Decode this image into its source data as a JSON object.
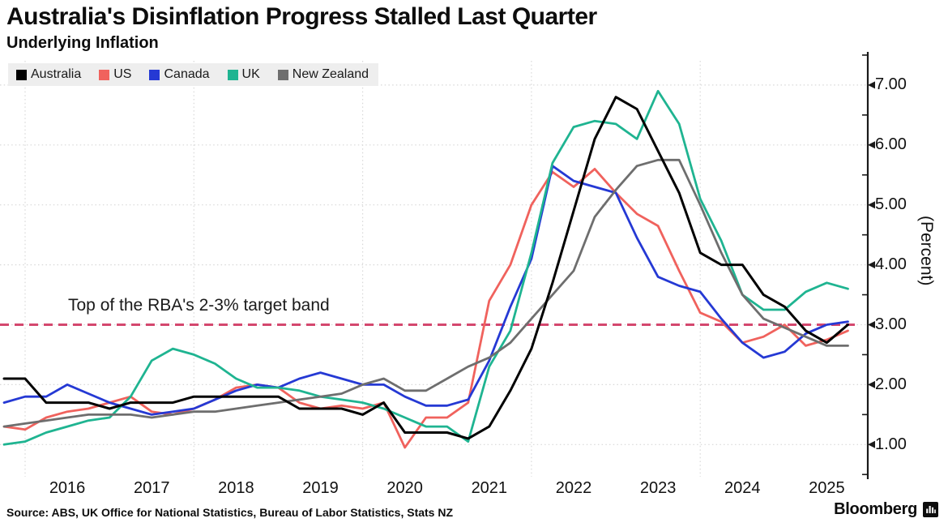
{
  "header": {
    "title": "Australia's Disinflation Progress Stalled Last Quarter",
    "subtitle": "Underlying Inflation"
  },
  "legend": {
    "items": [
      {
        "label": "Australia",
        "color": "#000000"
      },
      {
        "label": "US",
        "color": "#f0625d"
      },
      {
        "label": "Canada",
        "color": "#2539d4"
      },
      {
        "label": "UK",
        "color": "#1fb491"
      },
      {
        "label": "New Zealand",
        "color": "#6e6e6e"
      }
    ]
  },
  "annotation": {
    "text": "Top of the RBA's 2-3% target band"
  },
  "y_axis": {
    "unit_label": "(Percent)",
    "tick_labels": [
      "7.00",
      "6.00",
      "5.00",
      "4.00",
      "3.00",
      "2.00",
      "1.00"
    ],
    "tick_values": [
      7,
      6,
      5,
      4,
      3,
      2,
      1
    ],
    "minor_tick_values": [
      7.5,
      6.5,
      5.5,
      4.5,
      3.5,
      2.5,
      1.5,
      0.5
    ]
  },
  "x_axis": {
    "year_labels": [
      "2016",
      "2017",
      "2018",
      "2019",
      "2020",
      "2021",
      "2022",
      "2023",
      "2024",
      "2025"
    ],
    "gridline_years": [
      2016,
      2018,
      2020,
      2022,
      2024
    ]
  },
  "footer": {
    "source": "Source: ABS, UK Office for National Statistics, Bureau of Labor Statistics, Stats NZ",
    "brand": "Bloomberg"
  },
  "colors": {
    "grid": "#d8d8d8",
    "axis": "#1a1a1a",
    "target_line": "#d4476e",
    "legend_bg": "#eeeeee"
  },
  "chart_data": {
    "type": "line",
    "x_unit": "decimal_year_quarter_end",
    "x": [
      2015.75,
      2016.0,
      2016.25,
      2016.5,
      2016.75,
      2017.0,
      2017.25,
      2017.5,
      2017.75,
      2018.0,
      2018.25,
      2018.5,
      2018.75,
      2019.0,
      2019.25,
      2019.5,
      2019.75,
      2020.0,
      2020.25,
      2020.5,
      2020.75,
      2021.0,
      2021.25,
      2021.5,
      2021.75,
      2022.0,
      2022.25,
      2022.5,
      2022.75,
      2023.0,
      2023.25,
      2023.5,
      2023.75,
      2024.0,
      2024.25,
      2024.5,
      2024.75,
      2025.0,
      2025.25,
      2025.5,
      2025.75
    ],
    "series": [
      {
        "name": "Australia",
        "color": "#000000",
        "width": 3,
        "values": [
          2.1,
          2.1,
          1.7,
          1.7,
          1.7,
          1.6,
          1.7,
          1.7,
          1.7,
          1.8,
          1.8,
          1.8,
          1.8,
          1.8,
          1.6,
          1.6,
          1.6,
          1.5,
          1.7,
          1.2,
          1.2,
          1.2,
          1.1,
          1.3,
          1.9,
          2.6,
          3.7,
          4.9,
          6.1,
          6.8,
          6.6,
          5.9,
          5.2,
          4.2,
          4.0,
          4.0,
          3.5,
          3.3,
          2.9,
          2.7,
          3.0
        ]
      },
      {
        "name": "US",
        "color": "#f0625d",
        "width": 2.8,
        "values": [
          1.3,
          1.25,
          1.45,
          1.55,
          1.6,
          1.7,
          1.8,
          1.55,
          1.5,
          1.6,
          1.75,
          1.95,
          2.0,
          1.95,
          1.7,
          1.6,
          1.65,
          1.6,
          1.7,
          0.95,
          1.45,
          1.45,
          1.7,
          3.4,
          4.0,
          5.0,
          5.55,
          5.3,
          5.6,
          5.2,
          4.85,
          4.65,
          3.9,
          3.2,
          3.05,
          2.7,
          2.8,
          3.0,
          2.65,
          2.75,
          2.9
        ]
      },
      {
        "name": "Canada",
        "color": "#2539d4",
        "width": 2.8,
        "values": [
          1.7,
          1.8,
          1.8,
          2.0,
          1.85,
          1.7,
          1.6,
          1.5,
          1.55,
          1.6,
          1.75,
          1.9,
          2.0,
          1.95,
          2.1,
          2.2,
          2.1,
          2.0,
          2.0,
          1.8,
          1.65,
          1.65,
          1.75,
          2.4,
          3.3,
          4.1,
          5.65,
          5.4,
          5.3,
          5.2,
          4.45,
          3.8,
          3.65,
          3.55,
          3.1,
          2.7,
          2.45,
          2.55,
          2.85,
          3.0,
          3.05
        ]
      },
      {
        "name": "UK",
        "color": "#1fb491",
        "width": 2.8,
        "values": [
          1.0,
          1.05,
          1.2,
          1.3,
          1.4,
          1.45,
          1.8,
          2.4,
          2.6,
          2.5,
          2.35,
          2.1,
          1.95,
          1.95,
          1.9,
          1.8,
          1.75,
          1.7,
          1.6,
          1.45,
          1.3,
          1.3,
          1.05,
          2.3,
          2.9,
          4.2,
          5.7,
          6.3,
          6.4,
          6.35,
          6.1,
          6.9,
          6.35,
          5.1,
          4.4,
          3.5,
          3.25,
          3.25,
          3.55,
          3.7,
          3.6
        ]
      },
      {
        "name": "New Zealand",
        "color": "#6e6e6e",
        "width": 2.8,
        "values": [
          1.3,
          1.35,
          1.4,
          1.45,
          1.5,
          1.5,
          1.5,
          1.45,
          1.5,
          1.55,
          1.55,
          1.6,
          1.65,
          1.7,
          1.75,
          1.8,
          1.85,
          2.0,
          2.1,
          1.9,
          1.9,
          2.1,
          2.3,
          2.45,
          2.7,
          3.1,
          3.5,
          3.9,
          4.8,
          5.25,
          5.65,
          5.75,
          5.75,
          5.0,
          4.2,
          3.5,
          3.1,
          2.95,
          2.8,
          2.65,
          2.65
        ]
      }
    ],
    "target_line": {
      "value": 3.0,
      "style": "dashed",
      "color": "#d4476e",
      "label": "Top of the RBA's 2-3% target band"
    },
    "title": "Australia's Disinflation Progress Stalled Last Quarter",
    "subtitle": "Underlying Inflation",
    "xlabel": "",
    "ylabel": "(Percent)",
    "ylim": [
      0.5,
      7.5
    ],
    "xlim": [
      2015.7,
      2026.0
    ],
    "grid": {
      "horizontal": "dotted at each 1.00",
      "vertical": "dotted at even years"
    },
    "legend_position": "top-left"
  }
}
